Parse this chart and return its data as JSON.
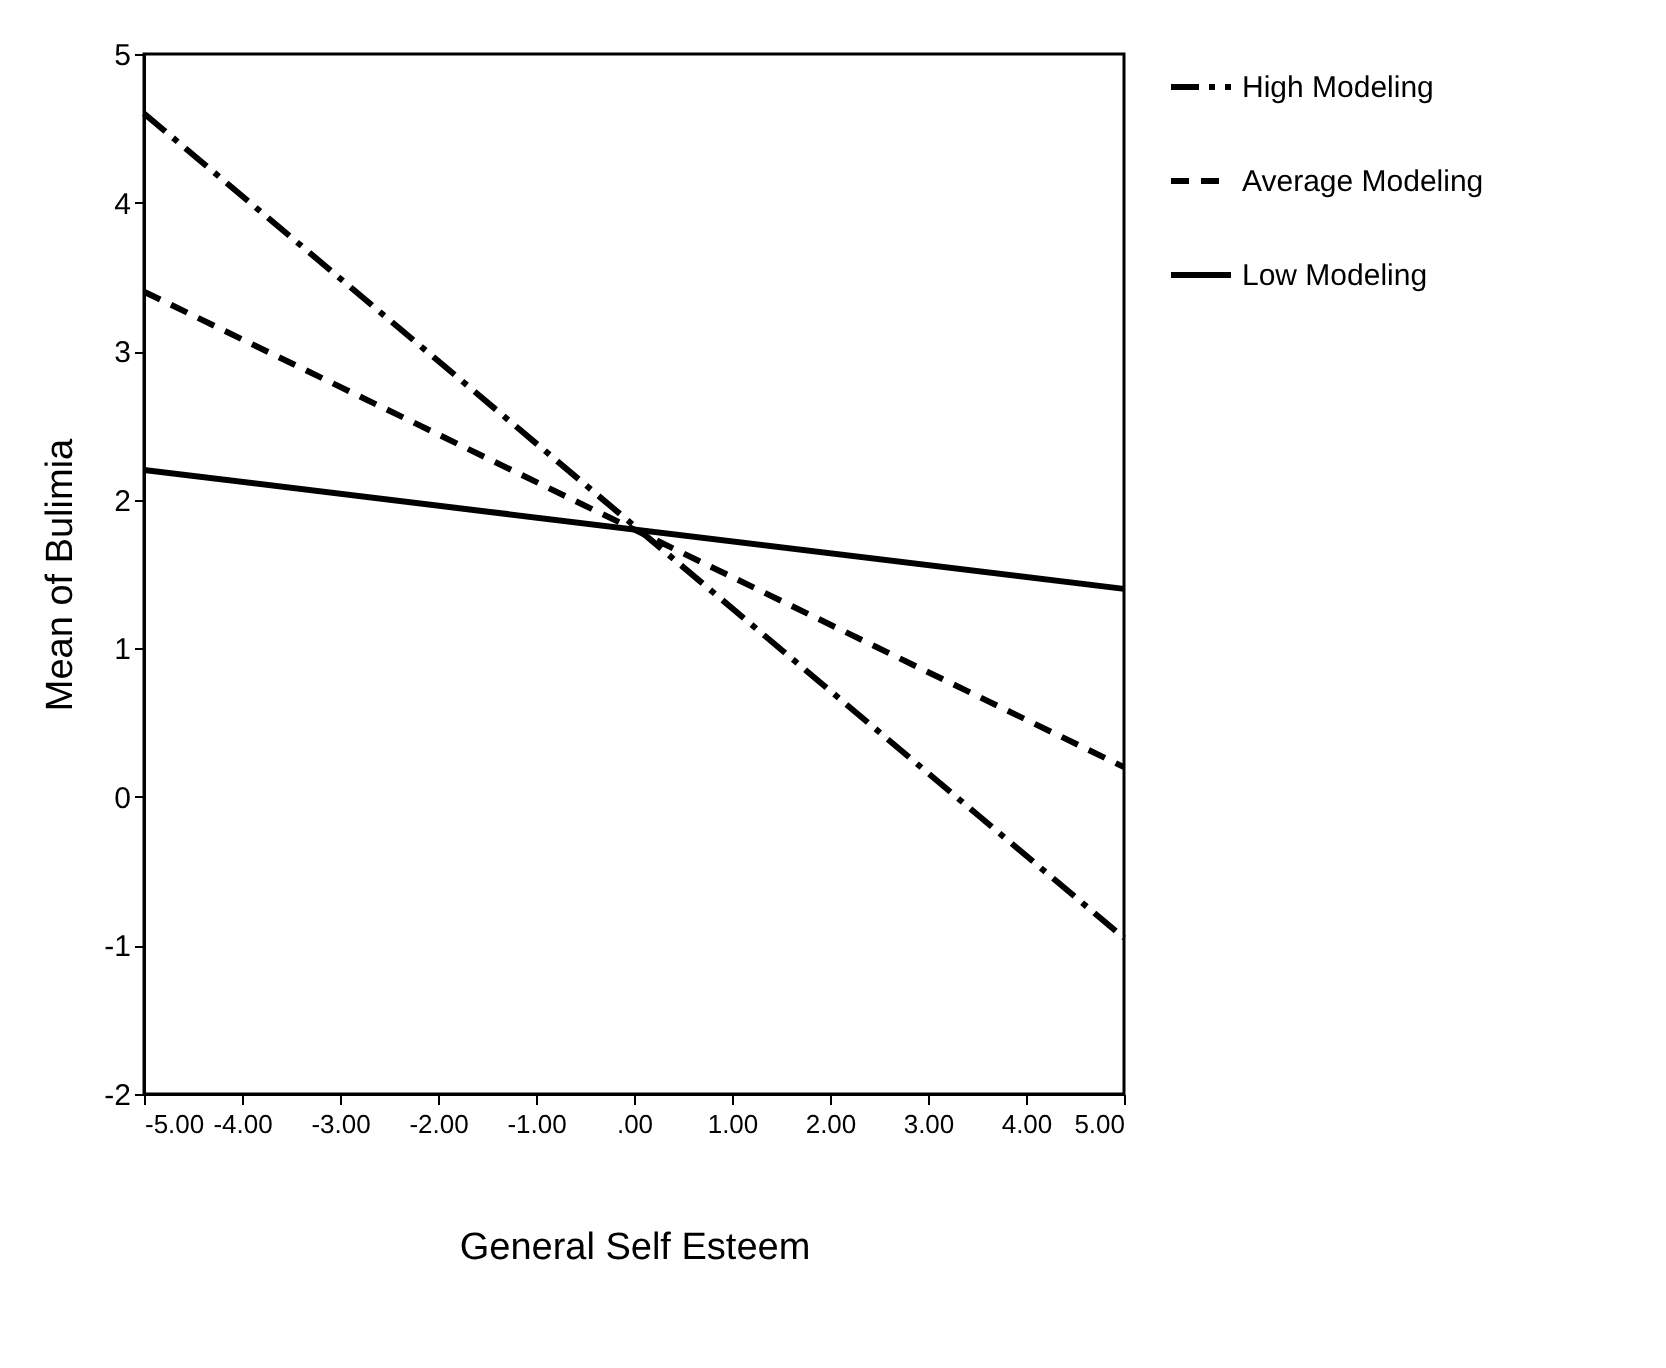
{
  "chart_data": {
    "type": "line",
    "xlabel": "General Self Esteem",
    "ylabel": "Mean of Bulimia",
    "x": [
      -5,
      5
    ],
    "series": [
      {
        "name": "High Modeling",
        "color": "#000000",
        "line_style": "dashdot",
        "values": [
          4.6,
          -0.95
        ]
      },
      {
        "name": "Average Modeling",
        "color": "#000000",
        "line_style": "dashed",
        "values": [
          3.4,
          0.2
        ]
      },
      {
        "name": "Low Modeling",
        "color": "#000000",
        "line_style": "solid",
        "values": [
          2.2,
          1.4
        ]
      }
    ],
    "xlim": [
      -5,
      5
    ],
    "xticks": [
      {
        "value": -5,
        "label": "-5.00"
      },
      {
        "value": -4,
        "label": "-4.00"
      },
      {
        "value": -3,
        "label": "-3.00"
      },
      {
        "value": -2,
        "label": "-2.00"
      },
      {
        "value": -1,
        "label": "-1.00"
      },
      {
        "value": 0,
        "label": ".00"
      },
      {
        "value": 1,
        "label": "1.00"
      },
      {
        "value": 2,
        "label": "2.00"
      },
      {
        "value": 3,
        "label": "3.00"
      },
      {
        "value": 4,
        "label": "4.00"
      },
      {
        "value": 5,
        "label": "5.00"
      }
    ],
    "ylim": [
      -2,
      5
    ],
    "yticks": [
      -2,
      -1,
      0,
      1,
      2,
      3,
      4,
      5
    ],
    "grid": false,
    "legend": "right",
    "marker": "none"
  }
}
